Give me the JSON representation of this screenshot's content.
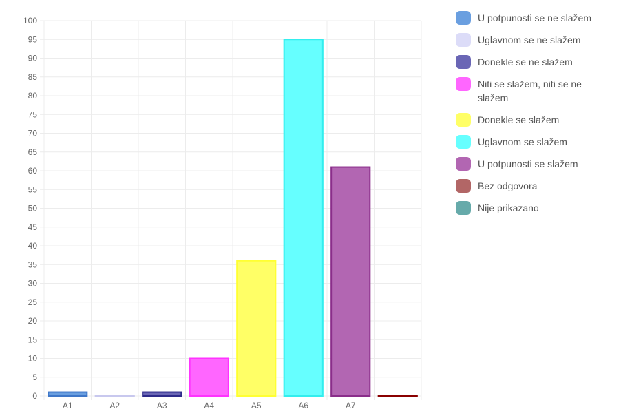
{
  "chart_data": {
    "type": "bar",
    "categories": [
      "A1",
      "A2",
      "A3",
      "A4",
      "A5",
      "A6",
      "A7",
      "A8"
    ],
    "values": [
      1,
      0,
      1,
      10,
      36,
      95,
      61,
      0
    ],
    "ylim": [
      0,
      100
    ],
    "ytick_step": 5,
    "grid": true,
    "legend_position": "right",
    "category_labels_shown": [
      "A1",
      "A2",
      "A3",
      "A4",
      "A5",
      "A6",
      "A7",
      ""
    ],
    "legend": [
      {
        "label": "U potpunosti se ne slažem",
        "color": "#6A9FE0"
      },
      {
        "label": "Uglavnom se ne slažem",
        "color": "#DCDCF8"
      },
      {
        "label": "Donekle se ne slažem",
        "color": "#6A66B5"
      },
      {
        "label": "Niti se slažem, niti se ne slažem",
        "color": "#FF66FF"
      },
      {
        "label": "Donekle se slažem",
        "color": "#FFFF66"
      },
      {
        "label": "Uglavnom se slažem",
        "color": "#66FFFF"
      },
      {
        "label": "U potpunosti se slažem",
        "color": "#B266B2"
      },
      {
        "label": "Bez odgovora",
        "color": "#B26666"
      },
      {
        "label": "Nije prikazano",
        "color": "#66AAAA"
      }
    ],
    "bar_fills": [
      "#6A9FE0",
      "#DCDCF8",
      "#6A66B5",
      "#FF66FF",
      "#FFFF66",
      "#66FFFF",
      "#B266B2",
      "#B26666"
    ],
    "bar_borders": [
      "#3F77C8",
      "#C8C8EE",
      "#2E2A8A",
      "#FF33FF",
      "#FFFF33",
      "#33EEEE",
      "#8A2E8A",
      "#8A0000"
    ]
  }
}
